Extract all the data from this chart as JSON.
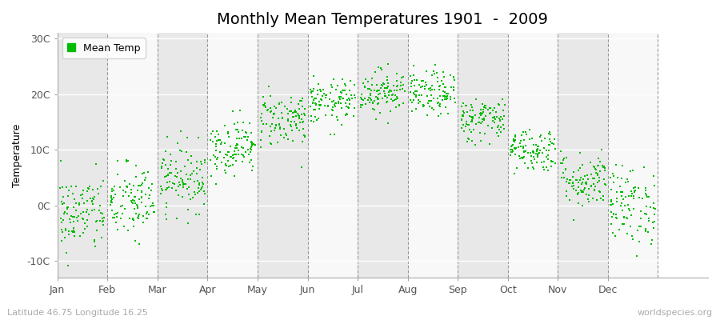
{
  "title": "Monthly Mean Temperatures 1901  -  2009",
  "ylabel": "Temperature",
  "xlabel_labels": [
    "Jan",
    "Feb",
    "Mar",
    "Apr",
    "May",
    "Jun",
    "Jul",
    "Aug",
    "Sep",
    "Oct",
    "Nov",
    "Dec"
  ],
  "ytick_labels": [
    "-10C",
    "0C",
    "10C",
    "20C",
    "30C"
  ],
  "ytick_values": [
    -10,
    0,
    10,
    20,
    30
  ],
  "ylim": [
    -13,
    31
  ],
  "xlim": [
    -0.5,
    12.5
  ],
  "background_color": "#ffffff",
  "plot_bg_color": "#f0f0f0",
  "band_color_light": "#f8f8f8",
  "band_color_dark": "#e8e8e8",
  "dot_color": "#00bb00",
  "dot_size": 3,
  "legend_label": "Mean Temp",
  "footer_left": "Latitude 46.75 Longitude 16.25",
  "footer_right": "worldspecies.org",
  "title_fontsize": 14,
  "label_fontsize": 9,
  "tick_fontsize": 9,
  "monthly_means": [
    -1.5,
    0.5,
    5.0,
    10.5,
    15.5,
    18.5,
    20.5,
    20.0,
    15.5,
    10.0,
    4.5,
    0.0
  ],
  "monthly_spreads": [
    3.5,
    3.5,
    3.0,
    2.5,
    2.5,
    2.0,
    2.0,
    2.0,
    2.0,
    2.0,
    2.5,
    3.5
  ],
  "n_years": 109,
  "seed": 42
}
